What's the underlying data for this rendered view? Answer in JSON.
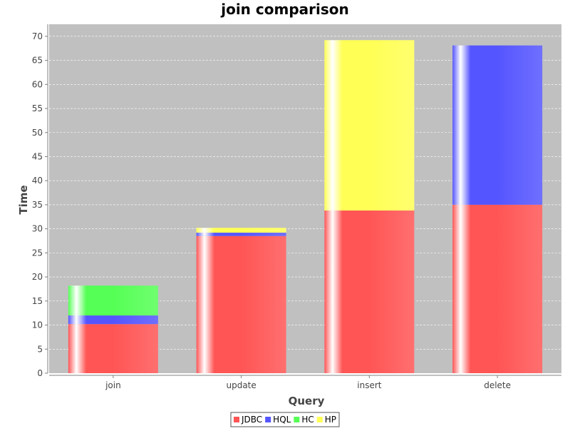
{
  "chart_data": {
    "type": "bar",
    "stacked": true,
    "title": "join comparison",
    "xlabel": "Query",
    "ylabel": "Time",
    "categories": [
      "join",
      "update",
      "insert",
      "delete"
    ],
    "series": [
      {
        "name": "JDBC",
        "color": "#ff5555",
        "values": [
          10.2,
          28.5,
          33.8,
          35.0
        ]
      },
      {
        "name": "HQL",
        "color": "#5555ff",
        "values": [
          1.8,
          0.7,
          0.0,
          33.1
        ]
      },
      {
        "name": "HC",
        "color": "#55ff55",
        "values": [
          6.2,
          0.0,
          0.0,
          0.0
        ]
      },
      {
        "name": "HP",
        "color": "#ffff55",
        "values": [
          0.0,
          1.0,
          35.4,
          0.0
        ]
      }
    ],
    "ylim": [
      0,
      72.5
    ],
    "yticks": [
      0,
      5,
      10,
      15,
      20,
      25,
      30,
      35,
      40,
      45,
      50,
      55,
      60,
      65,
      70
    ],
    "grid": true,
    "legend_position": "bottom",
    "plot_background": "#c0c0c0"
  }
}
